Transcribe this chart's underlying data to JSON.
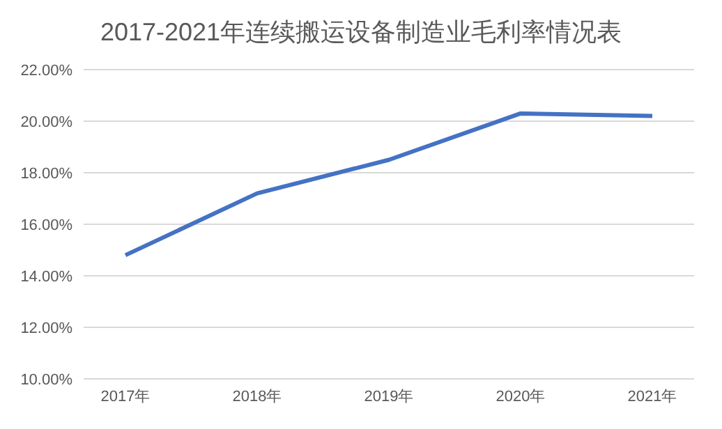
{
  "chart_data": {
    "type": "line",
    "title": "2017-2021年连续搬运设备制造业毛利率情况表",
    "categories": [
      "2017年",
      "2018年",
      "2019年",
      "2020年",
      "2021年"
    ],
    "series": [
      {
        "color": "#4472c4",
        "values": [
          14.8,
          17.2,
          18.5,
          20.3,
          20.2
        ]
      }
    ],
    "ylim": [
      10,
      22
    ],
    "yticks": [
      {
        "value": 10,
        "label": "10.00%"
      },
      {
        "value": 12,
        "label": "12.00%"
      },
      {
        "value": 14,
        "label": "14.00%"
      },
      {
        "value": 16,
        "label": "16.00%"
      },
      {
        "value": 18,
        "label": "18.00%"
      },
      {
        "value": 20,
        "label": "20.00%"
      },
      {
        "value": 22,
        "label": "22.00%"
      }
    ],
    "grid": "y",
    "marker": "none",
    "line_style": "solid"
  }
}
